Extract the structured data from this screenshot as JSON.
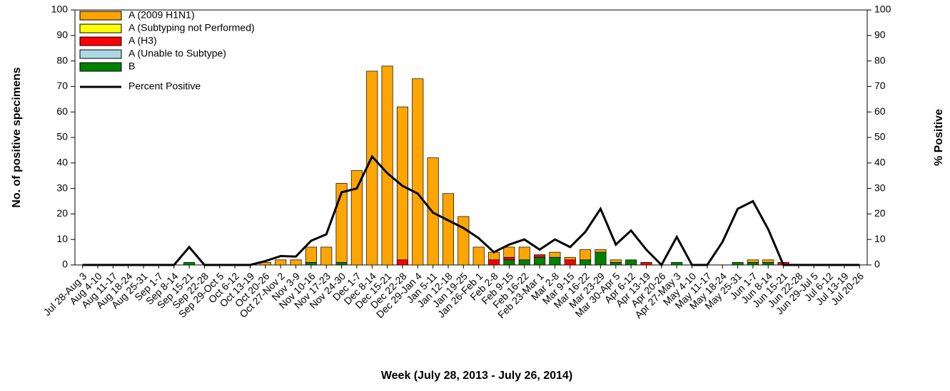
{
  "chart_data": {
    "type": "bar",
    "stacked": true,
    "x_label": "Week (July 28, 2013 - July 26, 2014)",
    "y_label": "No. of positive specimens",
    "y2_label": "% Positive",
    "categories": [
      "Jul 28-Aug 3",
      "Aug 4-10",
      "Aug 11-17",
      "Aug 18-24",
      "Aug 25-31",
      "Sep 1-7",
      "Sep 8-14",
      "Sep 15-21",
      "Sep 22-28",
      "Sep 29-Oct 5",
      "Oct 6-12",
      "Oct 13-19",
      "Oct 20-26",
      "Oct 27-Nov 2",
      "Nov 3-9",
      "Nov 10-16",
      "Nov 17-23",
      "Nov 24-30",
      "Dec 1-7",
      "Dec 8-14",
      "Dec 15-21",
      "Dec 22-28",
      "Dec 29-Jan 4",
      "Jan 5-11",
      "Jan 12-18",
      "Jan 19-25",
      "Jan 26-Feb 1",
      "Feb 2-8",
      "Feb 9-15",
      "Feb 16-22",
      "Feb 23-Mar 1",
      "Mar 2-8",
      "Mar 9-15",
      "Mar 16-22",
      "Mar 23-29",
      "Mar 30-Apr 5",
      "Apr 6-12",
      "Apr 13-19",
      "Apr 20-26",
      "Apr 27-May 3",
      "May 4-10",
      "May 11-17",
      "May 18-24",
      "May 25-31",
      "Jun 1-7",
      "Jun 8-14",
      "Jun 15-21",
      "Jun 22-28",
      "Jun 29-Jul 5",
      "Jul 6-12",
      "Jul 13-19",
      "Jul 20-26"
    ],
    "series": [
      {
        "name": "A (2009 H1N1)",
        "color": "#FFA500",
        "values": [
          0,
          0,
          0,
          0,
          0,
          0,
          0,
          0,
          0,
          0,
          0,
          0,
          1,
          2,
          2,
          6,
          7,
          31,
          37,
          76,
          78,
          60,
          73,
          42,
          28,
          19,
          7,
          3,
          4,
          5,
          0,
          2,
          1,
          4,
          1,
          1,
          0,
          0,
          0,
          0,
          0,
          0,
          0,
          0,
          1,
          1,
          0,
          0,
          0,
          0,
          0,
          0
        ]
      },
      {
        "name": "A (Subtyping not Performed)",
        "color": "#FFFF00",
        "values": [
          0,
          0,
          0,
          0,
          0,
          0,
          0,
          0,
          0,
          0,
          0,
          0,
          0,
          0,
          0,
          0,
          0,
          0,
          0,
          0,
          0,
          0,
          0,
          0,
          0,
          0,
          0,
          0,
          0,
          0,
          0,
          0,
          0,
          0,
          0,
          0,
          0,
          0,
          0,
          0,
          0,
          0,
          0,
          0,
          0,
          0,
          0,
          0,
          0,
          0,
          0,
          0
        ]
      },
      {
        "name": "A (H3)",
        "color": "#FF0000",
        "values": [
          0,
          0,
          0,
          0,
          0,
          0,
          0,
          0,
          0,
          0,
          0,
          0,
          0,
          0,
          0,
          0,
          0,
          0,
          0,
          0,
          0,
          2,
          0,
          0,
          0,
          0,
          0,
          2,
          1,
          0,
          1,
          0,
          2,
          0,
          0,
          0,
          0,
          1,
          0,
          0,
          0,
          0,
          0,
          0,
          0,
          0,
          1,
          0,
          0,
          0,
          0,
          0
        ]
      },
      {
        "name": "A (Unable to Subtype)",
        "color": "#ADD8E6",
        "values": [
          0,
          0,
          0,
          0,
          0,
          0,
          0,
          0,
          0,
          0,
          0,
          0,
          0,
          0,
          0,
          0,
          0,
          0,
          0,
          0,
          0,
          0,
          0,
          0,
          0,
          0,
          0,
          0,
          0,
          0,
          0,
          0,
          0,
          0,
          0,
          0,
          0,
          0,
          0,
          0,
          0,
          0,
          0,
          0,
          0,
          0,
          0,
          0,
          0,
          0,
          0,
          0
        ]
      },
      {
        "name": "B",
        "color": "#008000",
        "values": [
          0,
          0,
          0,
          0,
          0,
          0,
          0,
          1,
          0,
          0,
          0,
          0,
          0,
          0,
          0,
          1,
          0,
          1,
          0,
          0,
          0,
          0,
          0,
          0,
          0,
          0,
          0,
          0,
          2,
          2,
          3,
          3,
          0,
          2,
          5,
          1,
          2,
          0,
          0,
          1,
          0,
          0,
          0,
          1,
          1,
          1,
          0,
          0,
          0,
          0,
          0,
          0
        ]
      },
      {
        "name": "Percent Positive",
        "type": "line",
        "axis": "y2",
        "color": "#000000",
        "values": [
          0,
          0,
          0,
          0,
          0,
          0,
          0,
          7,
          0,
          0,
          0,
          0,
          1.5,
          3.5,
          3.3,
          9.5,
          12,
          28.5,
          30,
          42.5,
          36,
          31,
          28,
          20.5,
          17.5,
          14.5,
          10.5,
          5,
          8,
          10,
          6,
          10,
          7,
          13,
          22,
          8,
          13.5,
          6,
          0,
          11,
          0,
          0,
          9,
          22,
          25,
          14,
          0,
          0,
          0,
          0,
          0,
          0
        ]
      }
    ],
    "ylim": [
      0,
      100
    ],
    "yticks": [
      0,
      10,
      20,
      30,
      40,
      50,
      60,
      70,
      80,
      90,
      100
    ],
    "y2lim": [
      0,
      100
    ],
    "y2ticks": [
      0,
      10,
      20,
      30,
      40,
      50,
      60,
      70,
      80,
      90,
      100
    ],
    "grid": false,
    "legend": "upper left"
  }
}
